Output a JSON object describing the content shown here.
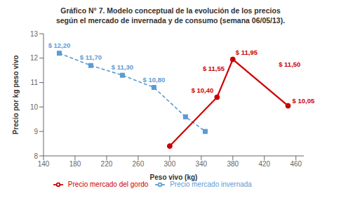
{
  "chart_data": {
    "type": "line",
    "title": "Gráfico N° 7. Modelo conceptual de la evolución de los precios\nsegún el mercado de invernada y de consumo (semana 06/05/13).",
    "xlabel": "Peso vivo (kg)",
    "ylabel": "Precio por kg peso vivo",
    "xlim": [
      140,
      470
    ],
    "ylim": [
      8,
      13
    ],
    "xticks": [
      140,
      180,
      220,
      260,
      300,
      340,
      380,
      420,
      460
    ],
    "yticks": [
      8,
      9,
      10,
      11,
      12,
      13
    ],
    "grid": false,
    "legend": "bottom",
    "data_labels": true,
    "series": [
      {
        "name": " Precio mercado invernada",
        "color": "#5B9BD5",
        "line_style": "dashed",
        "marker": "square",
        "x": [
          160,
          200,
          240,
          280,
          320,
          345
        ],
        "values": [
          12.2,
          11.7,
          11.3,
          10.8,
          9.6,
          9.0
        ],
        "value_labels": [
          "$ 12,20",
          "$ 11,70",
          "$ 11,30",
          "$ 10,80",
          null,
          null
        ]
      },
      {
        "name": " Precio mercado del gordo",
        "color": "#CC0000",
        "line_style": "solid",
        "marker": "circle",
        "x": [
          300,
          360,
          380,
          450
        ],
        "values": [
          8.4,
          10.4,
          11.95,
          10.05
        ],
        "value_labels": [
          null,
          "$ 10,40",
          "$ 11,95",
          "$ 10,05"
        ]
      }
    ],
    "annotations": [
      {
        "text": "$ 11,55",
        "x": 374,
        "y": 11.58,
        "color": "#CC0000"
      },
      {
        "text": "$ 11,50",
        "x": 452,
        "y": 11.5,
        "color": "#CC0000"
      }
    ]
  }
}
